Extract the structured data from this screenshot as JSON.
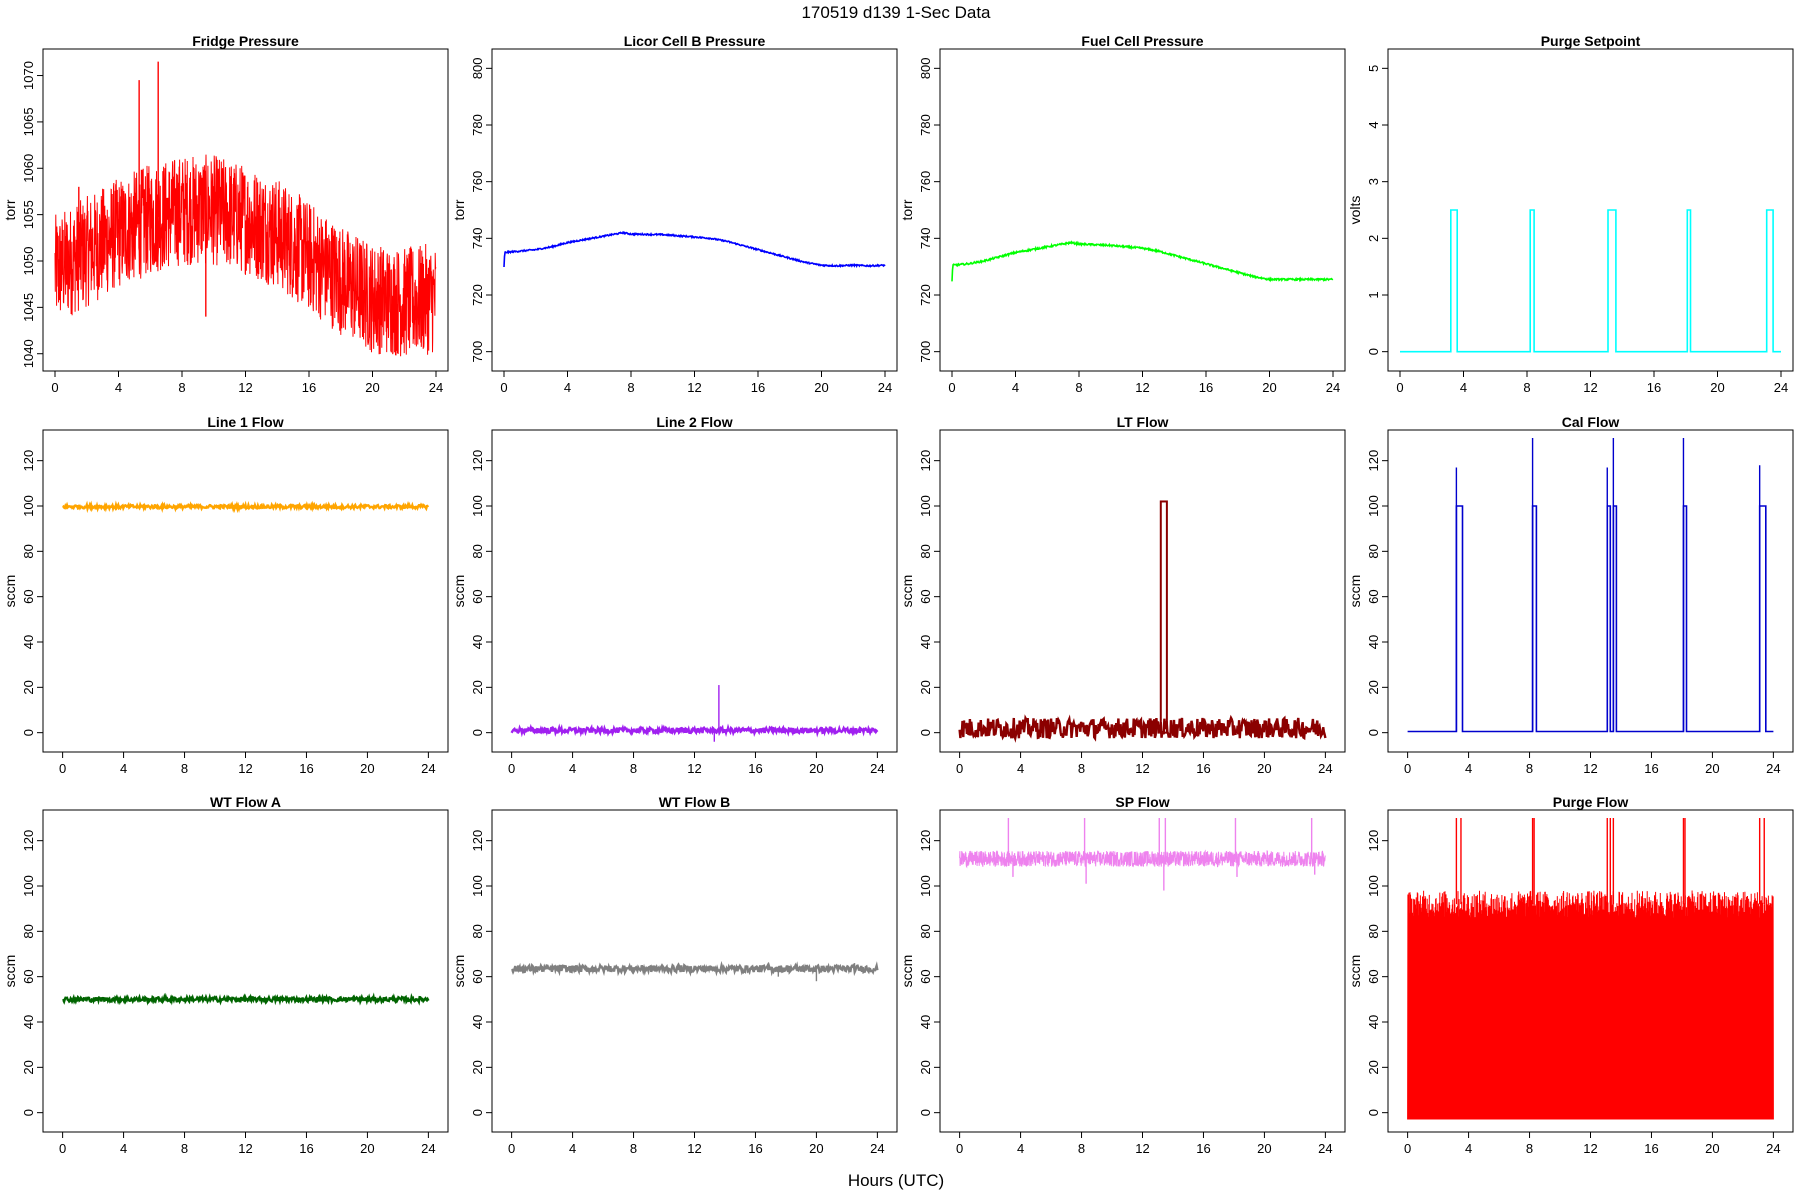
{
  "figure": {
    "title": "170519   d139   1-Sec Data",
    "xlabel": "Hours (UTC)"
  },
  "chart_data": [
    {
      "type": "line",
      "title": "Fridge Pressure",
      "ylabel": "torr",
      "color": "#ff0000",
      "xlim": [
        0,
        24
      ],
      "ylim": [
        1039,
        1072
      ],
      "yticks": [
        1040,
        1045,
        1050,
        1055,
        1060,
        1065,
        1070
      ],
      "xticks": [
        0,
        4,
        8,
        12,
        16,
        20,
        24
      ],
      "series": [
        {
          "name": "Fridge Pressure",
          "style": "noisy",
          "x": [
            0,
            2,
            4,
            6,
            8,
            10,
            12,
            14,
            16,
            18,
            20,
            22,
            24
          ],
          "values": [
            1049,
            1051,
            1053,
            1054.5,
            1055.5,
            1055.5,
            1054.5,
            1053,
            1050.5,
            1048,
            1046,
            1045.5,
            1046
          ],
          "noise": 6,
          "spikes": [
            [
              5.3,
              1069.5
            ],
            [
              6.5,
              1071.5
            ],
            [
              1.5,
              1058
            ],
            [
              9.5,
              1044
            ]
          ]
        }
      ]
    },
    {
      "type": "line",
      "title": "Licor Cell B Pressure",
      "ylabel": "torr",
      "color": "#0000ff",
      "xlim": [
        0,
        24
      ],
      "ylim": [
        696,
        804
      ],
      "yticks": [
        700,
        720,
        740,
        760,
        780,
        800
      ],
      "xticks": [
        0,
        4,
        8,
        12,
        16,
        20,
        24
      ],
      "series": [
        {
          "name": "Licor Cell B Pressure",
          "style": "line",
          "x": [
            0,
            0.05,
            1,
            2,
            3,
            4,
            5,
            6,
            7,
            7.5,
            8,
            10,
            12,
            13,
            14,
            15,
            16,
            17,
            18,
            19,
            20,
            21,
            22,
            23,
            24
          ],
          "values": [
            730,
            735,
            735.5,
            736,
            737,
            738.5,
            739.5,
            740.5,
            741.5,
            742,
            741.5,
            741.3,
            740.5,
            740,
            739,
            737.5,
            736,
            734.5,
            733,
            731.5,
            730.5,
            730.3,
            730.5,
            730.3,
            730.5
          ],
          "noise": 0.5,
          "spikes": []
        }
      ]
    },
    {
      "type": "line",
      "title": "Fuel Cell Pressure",
      "ylabel": "torr",
      "color": "#00ff00",
      "xlim": [
        0,
        24
      ],
      "ylim": [
        696,
        804
      ],
      "yticks": [
        700,
        720,
        740,
        760,
        780,
        800
      ],
      "xticks": [
        0,
        4,
        8,
        12,
        16,
        20,
        24
      ],
      "series": [
        {
          "name": "Fuel Cell Pressure",
          "style": "line",
          "x": [
            0,
            0.05,
            1,
            2,
            3,
            4,
            5,
            6,
            7,
            7.5,
            8,
            10,
            12,
            13,
            14,
            15,
            16,
            17,
            18,
            19,
            20,
            21,
            22,
            23,
            24
          ],
          "values": [
            725,
            730.5,
            731,
            732,
            733.5,
            735,
            736,
            737,
            738,
            738.5,
            738,
            737.5,
            736.5,
            735.5,
            734,
            732.5,
            731,
            729.5,
            728,
            726.5,
            725.5,
            725.5,
            725.5,
            725.5,
            725.5
          ],
          "noise": 0.6,
          "spikes": []
        }
      ]
    },
    {
      "type": "line",
      "title": "Purge Setpoint",
      "ylabel": "volts",
      "color": "#00ffff",
      "xlim": [
        0,
        24
      ],
      "ylim": [
        -0.2,
        5.2
      ],
      "yticks": [
        0,
        1,
        2,
        3,
        4,
        5
      ],
      "xticks": [
        0,
        4,
        8,
        12,
        16,
        20,
        24
      ],
      "series": [
        {
          "name": "Purge Setpoint",
          "style": "pulses",
          "x": [
            0,
            24
          ],
          "values": [
            0,
            0
          ],
          "noise": 0,
          "spikes": [],
          "pulses": [
            [
              3.2,
              3.6,
              2.5
            ],
            [
              8.2,
              8.45,
              2.5
            ],
            [
              13.1,
              13.6,
              2.5
            ],
            [
              18.1,
              18.3,
              2.5
            ],
            [
              23.1,
              23.5,
              2.5
            ]
          ]
        }
      ]
    },
    {
      "type": "line",
      "title": "Line 1 Flow",
      "ylabel": "sccm",
      "color": "#ffa500",
      "xlim": [
        -0.5,
        24.5
      ],
      "ylim": [
        -5,
        130
      ],
      "yticks": [
        0,
        20,
        40,
        60,
        80,
        100,
        120
      ],
      "xticks": [
        0,
        4,
        8,
        12,
        16,
        20,
        24
      ],
      "series": [
        {
          "name": "Line 1 Flow",
          "style": "band",
          "x": [
            0,
            24
          ],
          "values": [
            99.7,
            99.7
          ],
          "noise": 0.8,
          "spikes": []
        }
      ]
    },
    {
      "type": "line",
      "title": "Line 2 Flow",
      "ylabel": "sccm",
      "color": "#a020f0",
      "xlim": [
        -0.5,
        24.5
      ],
      "ylim": [
        -5,
        130
      ],
      "yticks": [
        0,
        20,
        40,
        60,
        80,
        100,
        120
      ],
      "xticks": [
        0,
        4,
        8,
        12,
        16,
        20,
        24
      ],
      "series": [
        {
          "name": "Line 2 Flow",
          "style": "band",
          "x": [
            0,
            24
          ],
          "values": [
            1,
            1
          ],
          "noise": 1.2,
          "spikes": [
            [
              13.6,
              21
            ],
            [
              13.3,
              -4
            ]
          ]
        }
      ]
    },
    {
      "type": "line",
      "title": "LT Flow",
      "ylabel": "sccm",
      "color": "#8b0000",
      "xlim": [
        -0.5,
        24.5
      ],
      "ylim": [
        -5,
        130
      ],
      "yticks": [
        0,
        20,
        40,
        60,
        80,
        100,
        120
      ],
      "xticks": [
        0,
        4,
        8,
        12,
        16,
        20,
        24
      ],
      "series": [
        {
          "name": "LT Flow",
          "style": "band",
          "x": [
            0,
            24
          ],
          "values": [
            2,
            2
          ],
          "noise": 4.5,
          "spikes": [],
          "pulses": [
            [
              13.2,
              13.6,
              102
            ]
          ]
        }
      ]
    },
    {
      "type": "line",
      "title": "Cal Flow",
      "ylabel": "sccm",
      "color": "#0000cd",
      "xlim": [
        -0.5,
        24.5
      ],
      "ylim": [
        -5,
        130
      ],
      "yticks": [
        0,
        20,
        40,
        60,
        80,
        100,
        120
      ],
      "xticks": [
        0,
        4,
        8,
        12,
        16,
        20,
        24
      ],
      "series": [
        {
          "name": "Cal Flow",
          "style": "pulses",
          "x": [
            0,
            24
          ],
          "values": [
            0.5,
            0.5
          ],
          "noise": 0,
          "spikes": [
            [
              3.2,
              117
            ],
            [
              8.2,
              130
            ],
            [
              13.1,
              117
            ],
            [
              13.5,
              130
            ],
            [
              18.1,
              130
            ],
            [
              23.1,
              118
            ]
          ],
          "pulses": [
            [
              3.2,
              3.6,
              100
            ],
            [
              8.2,
              8.45,
              100
            ],
            [
              13.1,
              13.3,
              100
            ],
            [
              13.5,
              13.7,
              100
            ],
            [
              18.1,
              18.3,
              100
            ],
            [
              23.1,
              23.5,
              100
            ]
          ]
        }
      ]
    },
    {
      "type": "line",
      "title": "WT Flow A",
      "ylabel": "sccm",
      "color": "#006400",
      "xlim": [
        -0.5,
        24.5
      ],
      "ylim": [
        -5,
        130
      ],
      "yticks": [
        0,
        20,
        40,
        60,
        80,
        100,
        120
      ],
      "xticks": [
        0,
        4,
        8,
        12,
        16,
        20,
        24
      ],
      "series": [
        {
          "name": "WT Flow A",
          "style": "band",
          "x": [
            0,
            24
          ],
          "values": [
            50,
            50
          ],
          "noise": 1.0,
          "spikes": []
        }
      ]
    },
    {
      "type": "line",
      "title": "WT Flow B",
      "ylabel": "sccm",
      "color": "#808080",
      "xlim": [
        -0.5,
        24.5
      ],
      "ylim": [
        -5,
        130
      ],
      "yticks": [
        0,
        20,
        40,
        60,
        80,
        100,
        120
      ],
      "xticks": [
        0,
        4,
        8,
        12,
        16,
        20,
        24
      ],
      "series": [
        {
          "name": "WT Flow B",
          "style": "band",
          "x": [
            0,
            24
          ],
          "values": [
            63.5,
            63.5
          ],
          "noise": 1.5,
          "spikes": [
            [
              17.5,
              60
            ],
            [
              20,
              58
            ],
            [
              22.5,
              66
            ]
          ]
        }
      ]
    },
    {
      "type": "line",
      "title": "SP Flow",
      "ylabel": "sccm",
      "color": "#ee82ee",
      "xlim": [
        -0.5,
        24.5
      ],
      "ylim": [
        -5,
        130
      ],
      "yticks": [
        0,
        20,
        40,
        60,
        80,
        100,
        120
      ],
      "xticks": [
        0,
        4,
        8,
        12,
        16,
        20,
        24
      ],
      "series": [
        {
          "name": "SP Flow",
          "style": "noisy",
          "x": [
            0,
            24
          ],
          "values": [
            112,
            112
          ],
          "noise": 3.5,
          "spikes": [
            [
              3.2,
              130
            ],
            [
              8.2,
              130
            ],
            [
              13.1,
              130
            ],
            [
              13.5,
              130
            ],
            [
              18.1,
              130
            ],
            [
              23.1,
              130
            ],
            [
              3.5,
              104
            ],
            [
              8.3,
              101
            ],
            [
              13.4,
              98
            ],
            [
              18.2,
              104
            ],
            [
              23.3,
              105
            ]
          ]
        }
      ]
    },
    {
      "type": "line",
      "title": "Purge Flow",
      "ylabel": "sccm",
      "color": "#ff0000",
      "xlim": [
        -0.5,
        24.5
      ],
      "ylim": [
        -5,
        130
      ],
      "yticks": [
        0,
        20,
        40,
        60,
        80,
        100,
        120
      ],
      "xticks": [
        0,
        4,
        8,
        12,
        16,
        20,
        24
      ],
      "series": [
        {
          "name": "Purge Flow",
          "style": "fill",
          "x": [
            0,
            24
          ],
          "values": [
            92,
            92
          ],
          "noise": 6,
          "spikes": [
            [
              3.2,
              130
            ],
            [
              3.5,
              130
            ],
            [
              8.2,
              130
            ],
            [
              8.3,
              130
            ],
            [
              13.1,
              130
            ],
            [
              13.3,
              130
            ],
            [
              13.5,
              130
            ],
            [
              18.1,
              130
            ],
            [
              18.2,
              130
            ],
            [
              23.1,
              130
            ],
            [
              23.4,
              130
            ]
          ]
        }
      ]
    }
  ]
}
